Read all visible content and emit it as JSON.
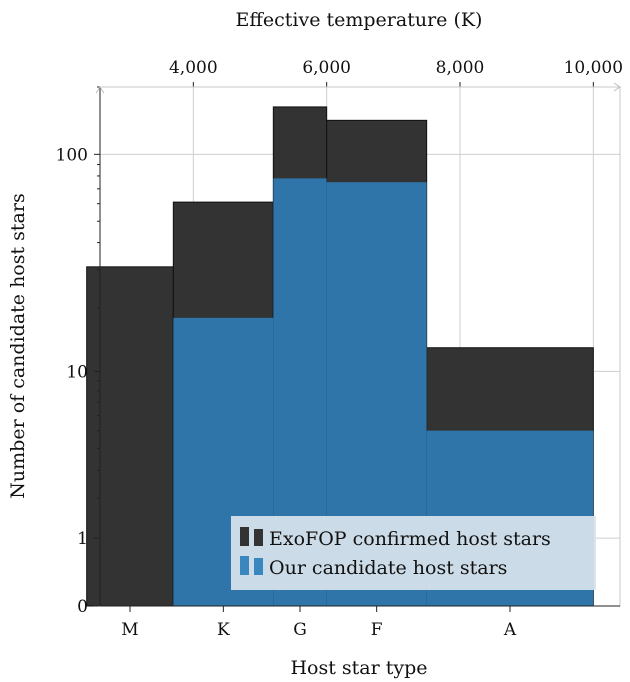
{
  "chart_data": {
    "type": "bar",
    "title": "",
    "xlabel": "Host star type",
    "ylabel": "Number of candidate host stars",
    "x2label": "Effective temperature (K)",
    "yscale": "log1p",
    "yticks": [
      0,
      1,
      10,
      100
    ],
    "ytick_labels": [
      "0",
      "1",
      "10",
      "100"
    ],
    "x2ticks": [
      4000,
      6000,
      8000,
      10000
    ],
    "x2tick_labels": [
      "4,000",
      "6,000",
      "8,000",
      "10,000"
    ],
    "x2lim": [
      2600,
      10400
    ],
    "categories": [
      "M",
      "K",
      "G",
      "F",
      "A"
    ],
    "bins": [
      [
        2400,
        3700
      ],
      [
        3700,
        5200
      ],
      [
        5200,
        6000
      ],
      [
        6000,
        7500
      ],
      [
        7500,
        10000
      ]
    ],
    "category_centers": [
      3050,
      4450,
      5600,
      6750,
      8750
    ],
    "grid": true,
    "legend_position": "bottom-right",
    "series": [
      {
        "name": "ExoFOP confirmed host stars",
        "values": [
          31,
          61,
          163,
          142,
          13
        ],
        "color": "#333333"
      },
      {
        "name": "Our candidate host stars",
        "values": [
          0,
          18,
          78,
          75,
          5
        ],
        "color": "#2f78ad"
      }
    ]
  }
}
